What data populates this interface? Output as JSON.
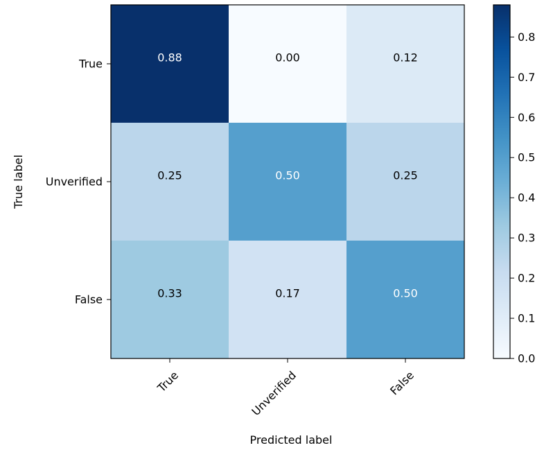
{
  "chart_data": {
    "type": "heatmap",
    "title": "",
    "xlabel": "Predicted label",
    "ylabel": "True label",
    "x_categories": [
      "True",
      "Unverified",
      "False"
    ],
    "y_categories": [
      "True",
      "Unverified",
      "False"
    ],
    "values": [
      [
        0.88,
        0.0,
        0.12
      ],
      [
        0.25,
        0.5,
        0.25
      ],
      [
        0.33,
        0.17,
        0.5
      ]
    ],
    "cell_labels": [
      [
        "0.88",
        "0.00",
        "0.12"
      ],
      [
        "0.25",
        "0.50",
        "0.25"
      ],
      [
        "0.33",
        "0.17",
        "0.50"
      ]
    ],
    "colormap": "Blues",
    "colormap_stops": [
      "#f7fbff",
      "#deebf7",
      "#c6dbef",
      "#9ecae1",
      "#6baed6",
      "#4292c6",
      "#2171b5",
      "#08519c",
      "#08306b"
    ],
    "vmin": 0.0,
    "vmax": 0.88,
    "colorbar_ticks": [
      0.0,
      0.1,
      0.2,
      0.3,
      0.4,
      0.5,
      0.6,
      0.7,
      0.8
    ],
    "colorbar_tick_labels": [
      "0.0",
      "0.1",
      "0.2",
      "0.3",
      "0.4",
      "0.5",
      "0.6",
      "0.7",
      "0.8"
    ],
    "label_light_color": "#ffffff",
    "label_dark_color": "#000000",
    "x_tick_rotation_deg": 45,
    "grid": false
  }
}
